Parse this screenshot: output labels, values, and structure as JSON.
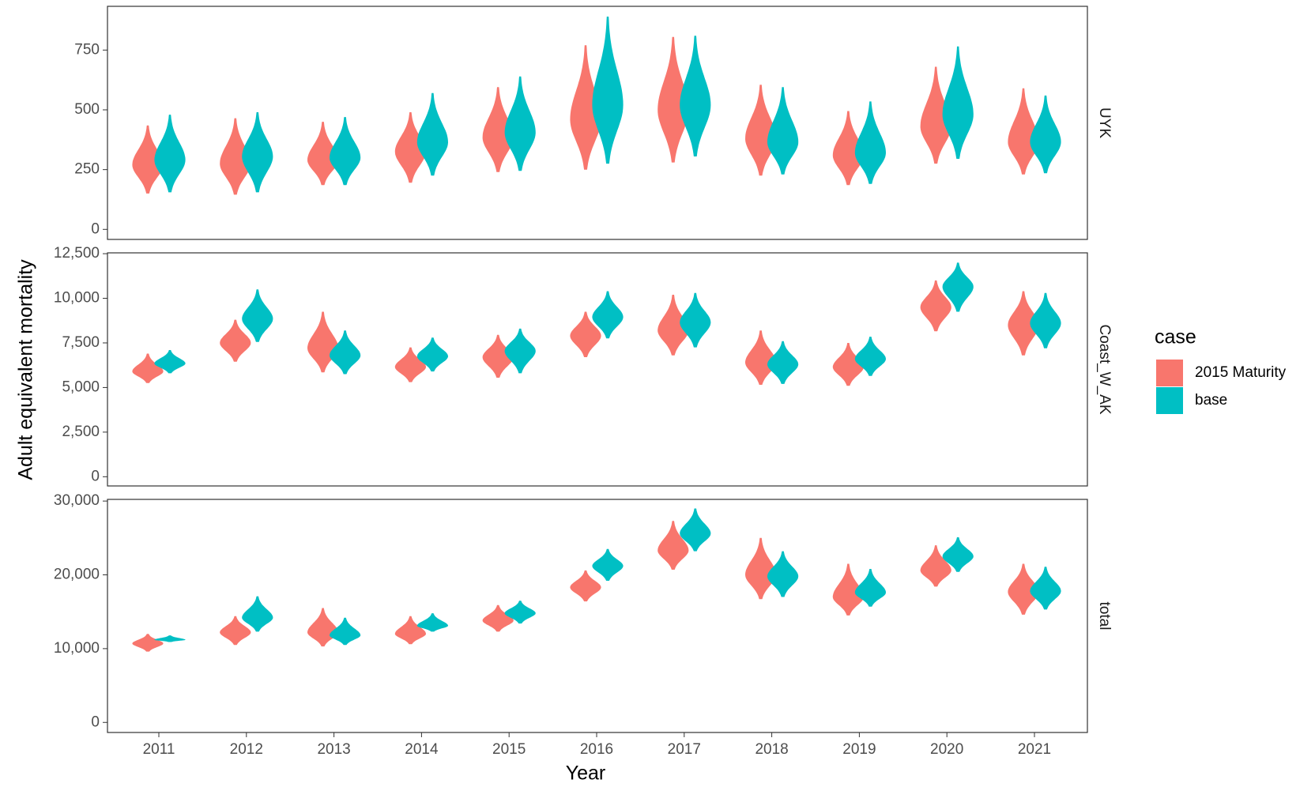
{
  "chart_data": {
    "type": "violin",
    "x_label": "Year",
    "y_label": "Adult equivalent mortality",
    "legend_title": "case",
    "categories": [
      "2011",
      "2012",
      "2013",
      "2014",
      "2015",
      "2016",
      "2017",
      "2018",
      "2019",
      "2020",
      "2021"
    ],
    "series": [
      {
        "name": "2015 Maturity",
        "color": "#f8766d"
      },
      {
        "name": "base",
        "color": "#00bfc4"
      }
    ],
    "facets": [
      {
        "label": "UYK",
        "ylim": [
          -42,
          933
        ],
        "yticks": [
          0,
          250,
          500,
          750
        ],
        "data": [
          {
            "min": [
              150,
              145,
              185,
              195,
              240,
              250,
              280,
              225,
              185,
              275,
              230
            ],
            "peak": [
              270,
              275,
              290,
              325,
              385,
              460,
              500,
              380,
              310,
              430,
              365
            ],
            "max": [
              435,
              465,
              450,
              490,
              595,
              770,
              805,
              605,
              495,
              680,
              590
            ]
          },
          {
            "min": [
              155,
              155,
              185,
              225,
              245,
              275,
              305,
              230,
              190,
              295,
              235
            ],
            "peak": [
              290,
              305,
              300,
              365,
              405,
              520,
              520,
              365,
              320,
              480,
              365
            ],
            "max": [
              480,
              490,
              470,
              570,
              640,
              890,
              810,
              595,
              535,
              765,
              560
            ]
          }
        ]
      },
      {
        "label": "Coast_W_AK",
        "ylim": [
          -517,
          12547
        ],
        "yticks": [
          0,
          {
            "value": 2500,
            "label": "2,500"
          },
          {
            "value": 5000,
            "label": "5,000"
          },
          {
            "value": 7500,
            "label": "7,500"
          },
          {
            "value": 10000,
            "label": "10,000"
          },
          {
            "value": 12500,
            "label": "12,500"
          }
        ],
        "data": [
          {
            "min": [
              5250,
              6450,
              5850,
              5300,
              5550,
              6700,
              6800,
              5150,
              5100,
              8150,
              6800
            ],
            "peak": [
              5900,
              7500,
              7200,
              6150,
              6700,
              7900,
              8200,
              6400,
              6150,
              9500,
              8500
            ],
            "max": [
              6900,
              8800,
              9250,
              7250,
              7950,
              9250,
              10200,
              8200,
              7500,
              11000,
              10400
            ]
          },
          {
            "min": [
              5800,
              7550,
              5750,
              5900,
              5800,
              7750,
              7250,
              5200,
              5650,
              9250,
              7200
            ],
            "peak": [
              6350,
              8850,
              6800,
              6750,
              7050,
              8950,
              8650,
              6300,
              6600,
              10650,
              8600
            ],
            "max": [
              7100,
              10500,
              8200,
              7800,
              8300,
              10400,
              10300,
              7600,
              7850,
              12000,
              10300
            ]
          }
        ]
      },
      {
        "label": "total",
        "ylim": [
          -1364,
          30227
        ],
        "yticks": [
          0,
          {
            "value": 10000,
            "label": "10,000"
          },
          {
            "value": 20000,
            "label": "20,000"
          },
          {
            "value": 30000,
            "label": "30,000"
          }
        ],
        "data": [
          {
            "min": [
              9600,
              10500,
              10300,
              10600,
              12300,
              16400,
              20700,
              16700,
              14500,
              18400,
              14600
            ],
            "peak": [
              10700,
              12200,
              12200,
              12000,
              13800,
              18300,
              23300,
              20000,
              17000,
              20600,
              17700
            ],
            "max": [
              12000,
              14400,
              15500,
              14400,
              15900,
              20600,
              27300,
              25000,
              21500,
              24000,
              21500
            ]
          },
          {
            "min": [
              10900,
              12300,
              10500,
              12300,
              13400,
              19200,
              23200,
              17000,
              15700,
              20400,
              15300
            ],
            "peak": [
              11200,
              14200,
              11800,
              13100,
              14800,
              21200,
              25600,
              19800,
              17600,
              22500,
              17800
            ],
            "max": [
              11800,
              17100,
              14200,
              14800,
              16500,
              23500,
              29000,
              23200,
              20800,
              25100,
              21100
            ]
          }
        ]
      }
    ]
  }
}
